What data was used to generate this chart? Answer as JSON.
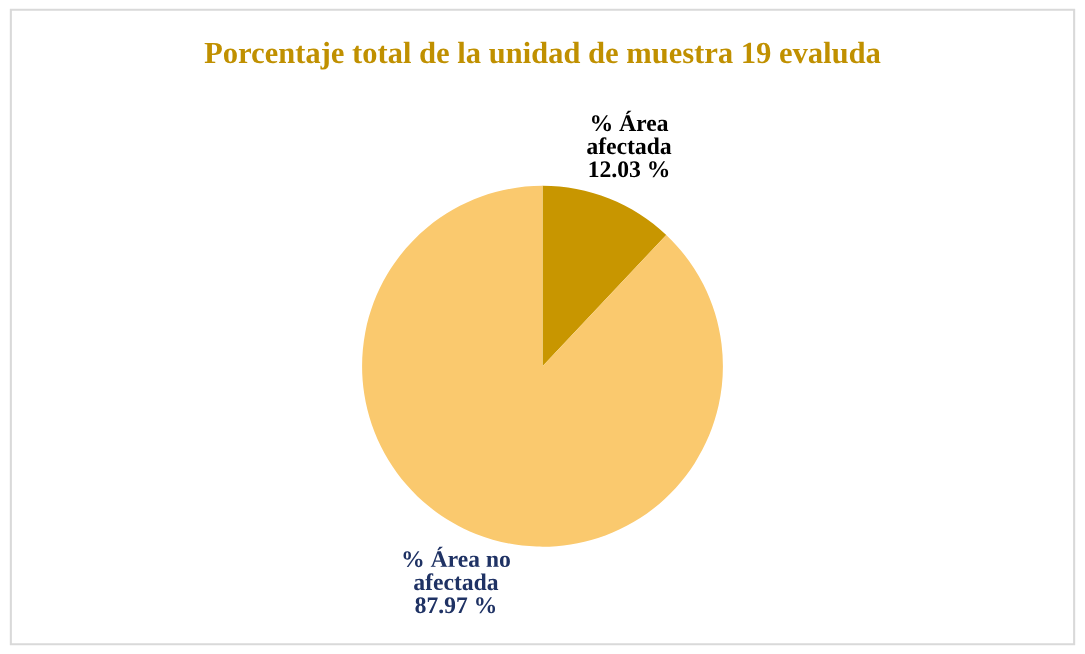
{
  "chart_data": {
    "type": "pie",
    "title": "Porcentaje total de la unidad de muestra 19 evaluda",
    "categories": [
      "% Área\nafectada",
      "% Área no\nafectada"
    ],
    "values": [
      12.03,
      87.97
    ],
    "colors": [
      "#c89600",
      "#fac96e"
    ],
    "value_labels": [
      "12.03 %",
      "87.97 %"
    ]
  }
}
